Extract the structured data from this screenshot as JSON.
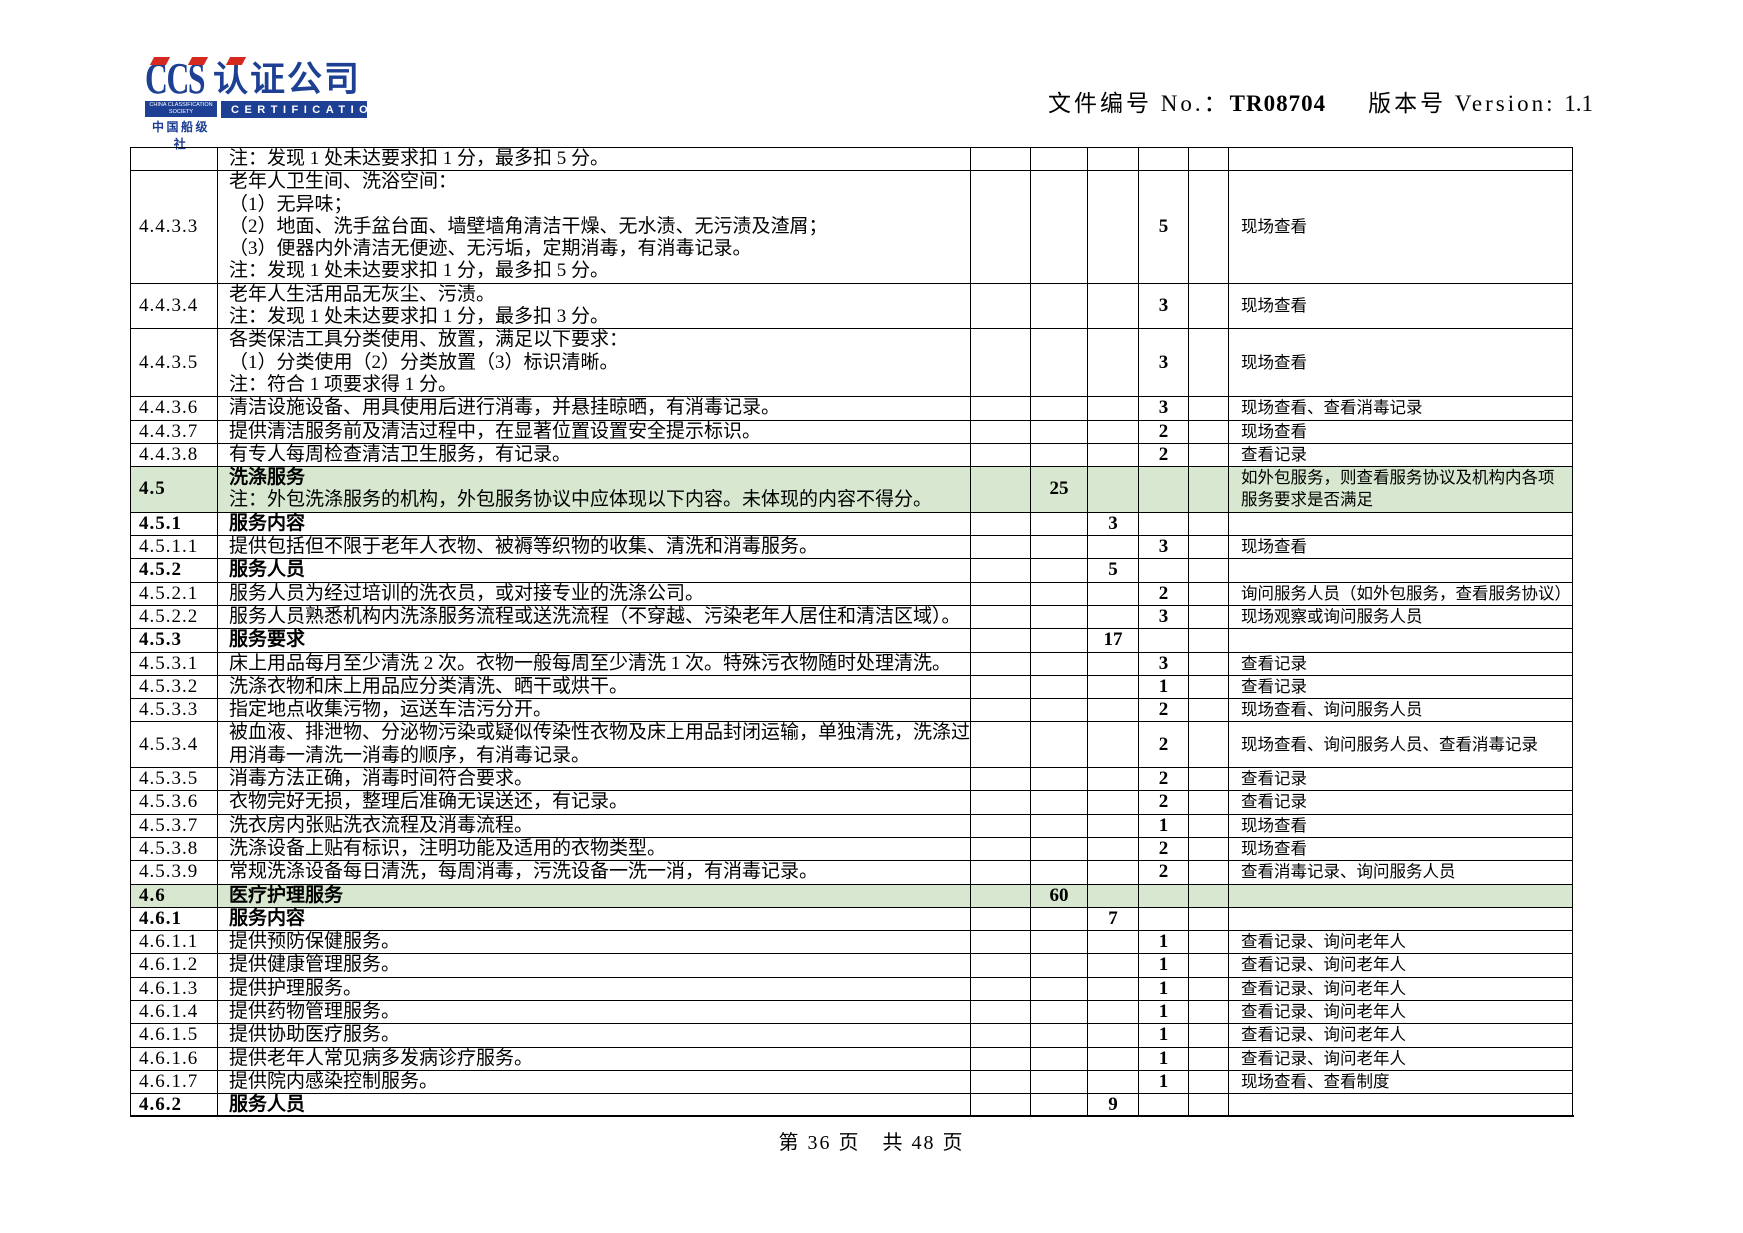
{
  "colors": {
    "green_row": "#d8e8d0",
    "logo_blue": "#1d3f94",
    "logo_red": "#d5281e"
  },
  "header": {
    "logo": {
      "ccs": "CCS",
      "company": "认证公司",
      "subtitle_en": "CHINA CLASSIFICATION SOCIETY",
      "subtitle_cn": "中国船级社",
      "certification": "CERTIFICATION"
    },
    "doc_no_label": "文件编号 No.：",
    "doc_no": "TR08704",
    "version_label": "版本号 Version: ",
    "version": "1.1"
  },
  "table": {
    "rows": [
      {
        "id": "",
        "desc": "注：发现 1 处未达要求扣 1 分，最多扣 5 分。"
      },
      {
        "id": "4.4.3.3",
        "desc": "老年人卫生间、洗浴空间：\n（1）无异味；\n（2）地面、洗手盆台面、墙壁墙角清洁干燥、无水渍、无污渍及渣屑；\n（3）便器内外清洁无便迹、无污垢，定期消毒，有消毒记录。\n注：发现 1 处未达要求扣 1 分，最多扣 5 分。",
        "d": "5",
        "verif": "现场查看"
      },
      {
        "id": "4.4.3.4",
        "desc": "老年人生活用品无灰尘、污渍。\n注：发现 1 处未达要求扣 1 分，最多扣 3 分。",
        "d": "3",
        "verif": "现场查看"
      },
      {
        "id": "4.4.3.5",
        "desc": "各类保洁工具分类使用、放置，满足以下要求：\n（1）分类使用（2）分类放置（3）标识清晰。\n注：符合 1 项要求得 1 分。",
        "d": "3",
        "verif": "现场查看"
      },
      {
        "id": "4.4.3.6",
        "desc": "清洁设施设备、用具使用后进行消毒，并悬挂晾晒，有消毒记录。",
        "d": "3",
        "verif": "现场查看、查看消毒记录"
      },
      {
        "id": "4.4.3.7",
        "desc": "提供清洁服务前及清洁过程中，在显著位置设置安全提示标识。",
        "d": "2",
        "verif": "现场查看"
      },
      {
        "id": "4.4.3.8",
        "desc": "有专人每周检查清洁卫生服务，有记录。",
        "d": "2",
        "verif": "查看记录"
      },
      {
        "id": "4.5",
        "head": true,
        "green": true,
        "title": "洗涤服务",
        "desc": "注：外包洗涤服务的机构，外包服务协议中应体现以下内容。未体现的内容不得分。",
        "b": "25",
        "verif": "如外包服务，则查看服务协议及机构内各项\n服务要求是否满足"
      },
      {
        "id": "4.5.1",
        "head": true,
        "title": "服务内容",
        "c": "3"
      },
      {
        "id": "4.5.1.1",
        "desc": "提供包括但不限于老年人衣物、被褥等织物的收集、清洗和消毒服务。",
        "d": "3",
        "verif": "现场查看"
      },
      {
        "id": "4.5.2",
        "head": true,
        "title": "服务人员",
        "c": "5"
      },
      {
        "id": "4.5.2.1",
        "desc": "服务人员为经过培训的洗衣员，或对接专业的洗涤公司。",
        "d": "2",
        "verif": "询问服务人员（如外包服务，查看服务协议）"
      },
      {
        "id": "4.5.2.2",
        "desc": "服务人员熟悉机构内洗涤服务流程或送洗流程（不穿越、污染老年人居住和清洁区域）。",
        "d": "3",
        "verif": "现场观察或询问服务人员"
      },
      {
        "id": "4.5.3",
        "head": true,
        "title": "服务要求",
        "c": "17"
      },
      {
        "id": "4.5.3.1",
        "desc": "床上用品每月至少清洗 2 次。衣物一般每周至少清洗 1 次。特殊污衣物随时处理清洗。",
        "d": "3",
        "verif": "查看记录"
      },
      {
        "id": "4.5.3.2",
        "desc": "洗涤衣物和床上用品应分类清洗、晒干或烘干。",
        "d": "1",
        "verif": "查看记录"
      },
      {
        "id": "4.5.3.3",
        "desc": "指定地点收集污物，运送车洁污分开。",
        "d": "2",
        "verif": "现场查看、询问服务人员"
      },
      {
        "id": "4.5.3.4",
        "desc": "被血液、排泄物、分泌物污染或疑似传染性衣物及床上用品封闭运输，单独清洗，洗涤过程采\n用消毒一清洗一消毒的顺序，有消毒记录。",
        "d": "2",
        "verif": "现场查看、询问服务人员、查看消毒记录"
      },
      {
        "id": "4.5.3.5",
        "desc": "消毒方法正确，消毒时间符合要求。",
        "d": "2",
        "verif": "查看记录"
      },
      {
        "id": "4.5.3.6",
        "desc": "衣物完好无损，整理后准确无误送还，有记录。",
        "d": "2",
        "verif": "查看记录"
      },
      {
        "id": "4.5.3.7",
        "desc": "洗衣房内张贴洗衣流程及消毒流程。",
        "d": "1",
        "verif": "现场查看"
      },
      {
        "id": "4.5.3.8",
        "desc": "洗涤设备上贴有标识，注明功能及适用的衣物类型。",
        "d": "2",
        "verif": "现场查看"
      },
      {
        "id": "4.5.3.9",
        "desc": "常规洗涤设备每日清洗，每周消毒，污洗设备一洗一消，有消毒记录。",
        "d": "2",
        "verif": "查看消毒记录、询问服务人员"
      },
      {
        "id": "4.6",
        "head": true,
        "green": true,
        "title": "医疗护理服务",
        "b": "60"
      },
      {
        "id": "4.6.1",
        "head": true,
        "title": "服务内容",
        "c": "7"
      },
      {
        "id": "4.6.1.1",
        "desc": "提供预防保健服务。",
        "d": "1",
        "verif": "查看记录、询问老年人"
      },
      {
        "id": "4.6.1.2",
        "desc": "提供健康管理服务。",
        "d": "1",
        "verif": "查看记录、询问老年人"
      },
      {
        "id": "4.6.1.3",
        "desc": "提供护理服务。",
        "d": "1",
        "verif": "查看记录、询问老年人"
      },
      {
        "id": "4.6.1.4",
        "desc": "提供药物管理服务。",
        "d": "1",
        "verif": "查看记录、询问老年人"
      },
      {
        "id": "4.6.1.5",
        "desc": "提供协助医疗服务。",
        "d": "1",
        "verif": "查看记录、询问老年人"
      },
      {
        "id": "4.6.1.6",
        "desc": "提供老年人常见病多发病诊疗服务。",
        "d": "1",
        "verif": "查看记录、询问老年人"
      },
      {
        "id": "4.6.1.7",
        "desc": "提供院内感染控制服务。",
        "d": "1",
        "verif": "现场查看、查看制度"
      },
      {
        "id": "4.6.2",
        "head": true,
        "title": "服务人员",
        "c": "9"
      }
    ]
  },
  "footer": {
    "page_text": "第 36 页　共 48 页"
  }
}
